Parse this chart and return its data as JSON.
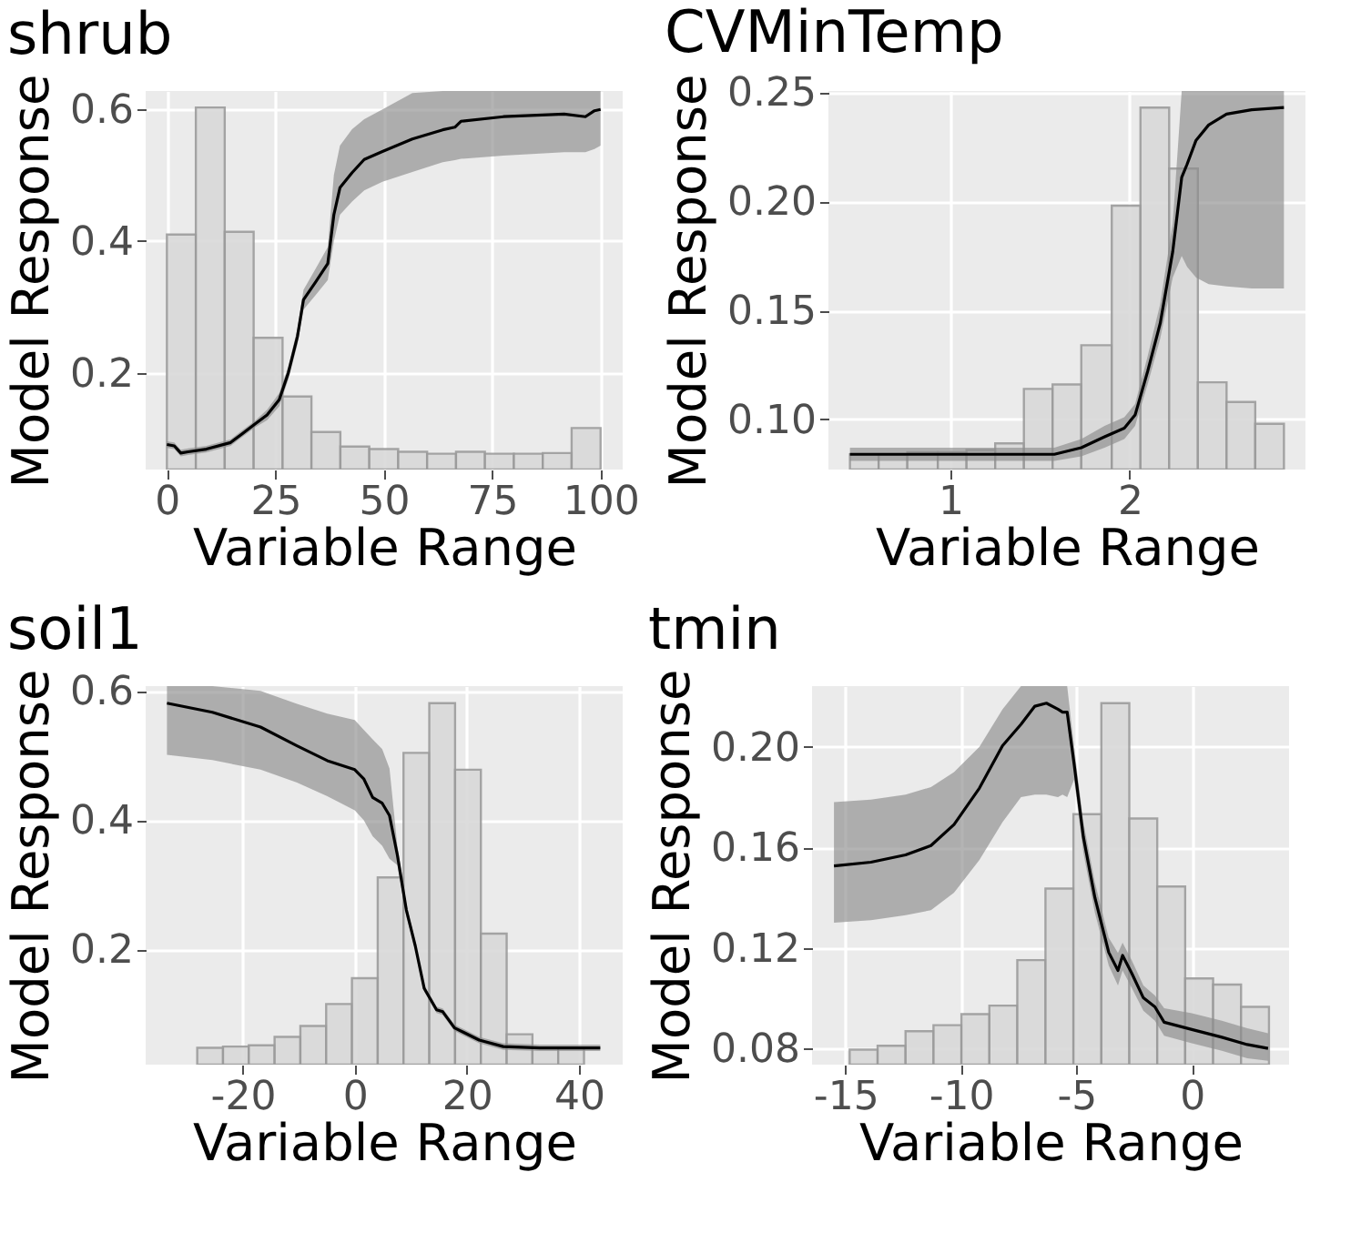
{
  "chart_data": [
    {
      "type": "line",
      "title": "shrub",
      "xlabel": "Variable Range",
      "ylabel": "Model Response",
      "grid": true,
      "line_style": "solid",
      "xlim": [
        -4.9,
        105.1
      ],
      "ylim": [
        0.053,
        0.628
      ],
      "xticks": [
        0,
        25,
        50,
        75,
        100
      ],
      "yticks": [
        0.2,
        0.4,
        0.6
      ],
      "series": [
        {
          "type": "histogram",
          "color": "#d9d9d9",
          "bins": [
            0,
            6.67,
            13.33,
            20,
            26.67,
            33.33,
            40,
            46.67,
            53.33,
            60,
            66.67,
            73.33,
            80,
            86.67,
            93.33,
            100
          ],
          "values": [
            0.41,
            0.603,
            0.414,
            0.253,
            0.164,
            0.11,
            0.088,
            0.084,
            0.08,
            0.077,
            0.08,
            0.077,
            0.077,
            0.078,
            0.116
          ]
        },
        {
          "color": "#000000",
          "x": [
            0,
            1.7,
            3.2,
            4.9,
            9.1,
            14.7,
            17.5,
            20.3,
            23.1,
            25.9,
            28,
            30.1,
            31.5,
            34.3,
            37.1,
            38.5,
            39.9,
            42.7,
            45.5,
            49.7,
            56.6,
            63.6,
            66.4,
            67.8,
            77.6,
            91.6,
            96.5,
            98.6,
            100
          ],
          "values": [
            0.091,
            0.089,
            0.078,
            0.08,
            0.084,
            0.094,
            0.108,
            0.122,
            0.136,
            0.159,
            0.2,
            0.255,
            0.311,
            0.338,
            0.366,
            0.44,
            0.481,
            0.504,
            0.524,
            0.536,
            0.555,
            0.569,
            0.573,
            0.582,
            0.589,
            0.593,
            0.589,
            0.598,
            0.6
          ],
          "upper": [
            0.096,
            0.094,
            0.083,
            0.085,
            0.089,
            0.099,
            0.113,
            0.127,
            0.144,
            0.169,
            0.21,
            0.267,
            0.326,
            0.358,
            0.391,
            0.5,
            0.545,
            0.57,
            0.585,
            0.6,
            0.625,
            0.628,
            0.628,
            0.628,
            0.628,
            0.628,
            0.628,
            0.628,
            0.628
          ],
          "lower": [
            0.086,
            0.084,
            0.073,
            0.075,
            0.079,
            0.089,
            0.103,
            0.117,
            0.128,
            0.149,
            0.19,
            0.243,
            0.296,
            0.318,
            0.341,
            0.4,
            0.44,
            0.46,
            0.477,
            0.49,
            0.505,
            0.52,
            0.523,
            0.525,
            0.53,
            0.535,
            0.535,
            0.54,
            0.545
          ]
        }
      ]
    },
    {
      "type": "line",
      "title": "CVMinTemp",
      "xlabel": "Variable Range",
      "ylabel": "Model Response",
      "grid": true,
      "line_style": "solid",
      "xlim": [
        0.32,
        2.98
      ],
      "ylim": [
        0.077,
        0.2506
      ],
      "xticks": [
        1,
        2
      ],
      "yticks": [
        {
          "value": 0.1,
          "label": "0.10"
        },
        {
          "value": 0.15,
          "label": "0.15"
        },
        {
          "value": 0.2,
          "label": "0.20"
        },
        {
          "value": 0.25,
          "label": "0.25"
        }
      ],
      "series": [
        {
          "type": "histogram",
          "color": "#d9d9d9",
          "bins": [
            0.44,
            0.6,
            0.76,
            0.93,
            1.09,
            1.25,
            1.41,
            1.57,
            1.73,
            1.9,
            2.06,
            2.22,
            2.38,
            2.54,
            2.7,
            2.86
          ],
          "values": [
            0.084,
            0.084,
            0.085,
            0.085,
            0.086,
            0.089,
            0.114,
            0.116,
            0.134,
            0.198,
            0.243,
            0.215,
            0.117,
            0.108,
            0.098
          ]
        },
        {
          "color": "#000000",
          "x": [
            0.44,
            1.0,
            1.58,
            1.73,
            1.86,
            1.97,
            2.03,
            2.1,
            2.17,
            2.24,
            2.29,
            2.32,
            2.37,
            2.44,
            2.54,
            2.68,
            2.86
          ],
          "values": [
            0.084,
            0.084,
            0.084,
            0.087,
            0.092,
            0.096,
            0.102,
            0.122,
            0.144,
            0.177,
            0.211,
            0.217,
            0.228,
            0.235,
            0.24,
            0.242,
            0.243
          ],
          "upper": [
            0.087,
            0.087,
            0.087,
            0.091,
            0.097,
            0.101,
            0.107,
            0.129,
            0.153,
            0.19,
            0.2506,
            0.2506,
            0.2506,
            0.2506,
            0.2506,
            0.2506,
            0.2506
          ],
          "lower": [
            0.081,
            0.081,
            0.081,
            0.083,
            0.087,
            0.091,
            0.097,
            0.116,
            0.137,
            0.165,
            0.175,
            0.17,
            0.165,
            0.162,
            0.161,
            0.16,
            0.16
          ]
        }
      ]
    },
    {
      "type": "line",
      "title": "soil1",
      "xlabel": "Variable Range",
      "ylabel": "Model Response",
      "grid": true,
      "line_style": "solid",
      "xlim": [
        -37.3,
        47.8
      ],
      "ylim": [
        0.021,
        0.6075
      ],
      "xticks": [
        -20,
        0,
        20,
        40
      ],
      "yticks": [
        0.2,
        0.4,
        0.6
      ],
      "series": [
        {
          "type": "histogram",
          "color": "#d9d9d9",
          "bins": [
            -28.1,
            -23.5,
            -18.9,
            -14.3,
            -9.7,
            -5.1,
            -0.5,
            4.1,
            8.7,
            13.3,
            17.9,
            22.5,
            27.1,
            31.7,
            36.3,
            40.9
          ],
          "values": [
            0.047,
            0.049,
            0.051,
            0.064,
            0.081,
            0.115,
            0.155,
            0.311,
            0.504,
            0.581,
            0.478,
            0.224,
            0.068,
            0.047,
            0.047
          ]
        },
        {
          "color": "#000000",
          "x": [
            -33.5,
            -25.4,
            -16.8,
            -10.3,
            -4.9,
            0,
            1.6,
            3.2,
            4.9,
            6.2,
            7.6,
            9.2,
            10.8,
            12.4,
            14.6,
            15.7,
            17.8,
            22.2,
            26.5,
            33.0,
            43.8
          ],
          "values": [
            0.581,
            0.567,
            0.544,
            0.515,
            0.492,
            0.478,
            0.464,
            0.435,
            0.426,
            0.407,
            0.346,
            0.261,
            0.205,
            0.139,
            0.106,
            0.103,
            0.078,
            0.059,
            0.049,
            0.047,
            0.047
          ],
          "upper": [
            0.6075,
            0.6075,
            0.6,
            0.58,
            0.565,
            0.555,
            0.54,
            0.525,
            0.51,
            0.48,
            0.36,
            0.27,
            0.21,
            0.144,
            0.111,
            0.108,
            0.083,
            0.064,
            0.054,
            0.052,
            0.052
          ],
          "lower": [
            0.501,
            0.493,
            0.478,
            0.458,
            0.437,
            0.415,
            0.4,
            0.375,
            0.36,
            0.34,
            0.33,
            0.25,
            0.2,
            0.134,
            0.101,
            0.098,
            0.073,
            0.054,
            0.044,
            0.042,
            0.042
          ]
        }
      ]
    },
    {
      "type": "line",
      "title": "tmin",
      "xlabel": "Variable Range",
      "ylabel": "Model Response",
      "grid": true,
      "line_style": "solid",
      "xlim": [
        -16.45,
        4.21
      ],
      "ylim": [
        0.0735,
        0.2242
      ],
      "xticks": [
        -15,
        -10,
        -5,
        0
      ],
      "yticks": [
        {
          "value": 0.08,
          "label": "0.08"
        },
        {
          "value": 0.12,
          "label": "0.12"
        },
        {
          "value": 0.16,
          "label": "0.16"
        },
        {
          "value": 0.2,
          "label": "0.20"
        }
      ],
      "series": [
        {
          "type": "histogram",
          "color": "#d9d9d9",
          "bins": [
            -14.82,
            -13.61,
            -12.4,
            -11.19,
            -9.98,
            -8.77,
            -7.56,
            -6.34,
            -5.13,
            -3.92,
            -2.71,
            -1.5,
            -0.29,
            0.92,
            2.13,
            3.34
          ],
          "values": [
            0.0795,
            0.081,
            0.0868,
            0.0892,
            0.0936,
            0.097,
            0.1151,
            0.1436,
            0.1732,
            0.2174,
            0.1715,
            0.1444,
            0.1078,
            0.1054,
            0.0965
          ]
        },
        {
          "color": "#000000",
          "x": [
            -15.5,
            -13.9,
            -12.4,
            -11.3,
            -10.3,
            -9.2,
            -8.2,
            -7.4,
            -6.8,
            -6.3,
            -5.8,
            -5.6,
            -5.4,
            -5.1,
            -4.7,
            -4.2,
            -3.6,
            -3.2,
            -3.0,
            -2.6,
            -2.1,
            -1.6,
            -1.2,
            0,
            1.3,
            2.4,
            3.3
          ],
          "values": [
            0.1526,
            0.1541,
            0.157,
            0.1607,
            0.1691,
            0.1836,
            0.2005,
            0.209,
            0.2162,
            0.2174,
            0.215,
            0.2138,
            0.2138,
            0.1932,
            0.1642,
            0.14,
            0.1182,
            0.111,
            0.117,
            0.1098,
            0.1001,
            0.0965,
            0.0904,
            0.0875,
            0.0844,
            0.0815,
            0.08
          ],
          "upper": [
            0.178,
            0.179,
            0.181,
            0.184,
            0.19,
            0.2,
            0.215,
            0.2242,
            0.2242,
            0.2242,
            0.2242,
            0.2242,
            0.2242,
            0.2,
            0.17,
            0.146,
            0.124,
            0.118,
            0.122,
            0.115,
            0.105,
            0.101,
            0.096,
            0.094,
            0.091,
            0.088,
            0.086
          ],
          "lower": [
            0.13,
            0.131,
            0.133,
            0.135,
            0.142,
            0.155,
            0.17,
            0.18,
            0.181,
            0.181,
            0.18,
            0.181,
            0.18,
            0.187,
            0.158,
            0.134,
            0.113,
            0.105,
            0.111,
            0.104,
            0.095,
            0.091,
            0.085,
            0.082,
            0.079,
            0.076,
            0.075
          ]
        }
      ]
    }
  ]
}
